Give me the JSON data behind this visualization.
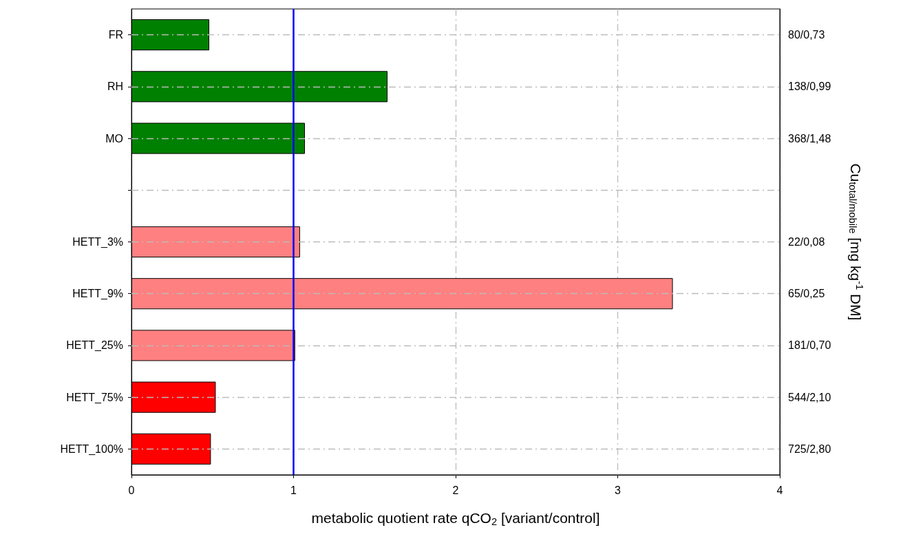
{
  "chart_data": {
    "type": "bar",
    "orientation": "horizontal",
    "categories": [
      "FR",
      "RH",
      "MO",
      null,
      "HETT_3%",
      "HETT_9%",
      "HETT_25%",
      "HETT_75%",
      "HETT_100%"
    ],
    "y2_categories": [
      "80/0,73",
      "138/0,99",
      "368/1,48",
      null,
      "22/0,08",
      "65/0,25",
      "181/0,70",
      "544/2,10",
      "725/2,80"
    ],
    "values": [
      0.48,
      1.58,
      1.07,
      null,
      1.04,
      3.34,
      1.01,
      0.52,
      0.49
    ],
    "colors": [
      "#008000",
      "#008000",
      "#008000",
      null,
      "#ff8080",
      "#ff8080",
      "#ff8080",
      "#ff0000",
      "#ff0000"
    ],
    "xlabel": "metabolic quotient rate qCO$_{2}$ [variant/control]",
    "y2label": "Cu$_{total/mobile}$ [mg kg$^{-1}$ DM]",
    "xlim": [
      0,
      4
    ],
    "xticks": [
      0,
      1,
      2,
      3,
      4
    ],
    "grid": true,
    "ref_lines": [
      {
        "axis": "x",
        "value": 1,
        "label": null,
        "color": "#0000ff",
        "line_style": "solid"
      }
    ]
  }
}
